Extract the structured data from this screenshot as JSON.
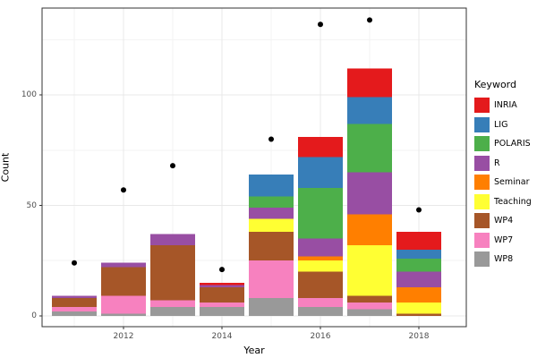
{
  "figure": {
    "background": "#ffffff"
  },
  "chart_data": {
    "type": "bar",
    "subtype": "stacked-bars-with-points",
    "title": "",
    "xlabel": "Year",
    "ylabel": "Count",
    "x_tick_labels": [
      "2012",
      "2014",
      "2016",
      "2018"
    ],
    "x_tick_years": [
      2012,
      2014,
      2016,
      2018
    ],
    "x_minor_years": [
      2011,
      2013,
      2015,
      2017
    ],
    "y_tick_labels": [
      "0",
      "50",
      "100"
    ],
    "y_ticks": [
      0,
      50,
      100
    ],
    "y_minor_ticks": [
      25,
      75,
      125
    ],
    "ylim": [
      -4.9,
      139.4
    ],
    "grid": true,
    "categories": [
      2011,
      2012,
      2013,
      2014,
      2015,
      2016,
      2017,
      2018
    ],
    "series": [
      {
        "name": "INRIA",
        "color": "#e41a1c",
        "values": [
          0,
          0,
          0,
          1,
          0,
          9,
          13,
          8
        ]
      },
      {
        "name": "LIG",
        "color": "#377eb8",
        "values": [
          0,
          0,
          0,
          0,
          10,
          14,
          12,
          4
        ]
      },
      {
        "name": "POLARIS",
        "color": "#4daf4a",
        "values": [
          0,
          0,
          0,
          0,
          5,
          23,
          22,
          6
        ]
      },
      {
        "name": "R",
        "color": "#984ea3",
        "values": [
          1,
          2,
          5,
          1,
          5,
          8,
          19,
          7
        ]
      },
      {
        "name": "Seminar",
        "color": "#ff7f00",
        "values": [
          0,
          0,
          0,
          0,
          0,
          2,
          14,
          7
        ]
      },
      {
        "name": "Teaching",
        "color": "#ffff33",
        "values": [
          0,
          0,
          0,
          0,
          6,
          5,
          23,
          5
        ]
      },
      {
        "name": "WP4",
        "color": "#a65628",
        "values": [
          4,
          13,
          25,
          7,
          13,
          12,
          3,
          1
        ]
      },
      {
        "name": "WP7",
        "color": "#f781bf",
        "values": [
          2,
          8,
          3,
          2,
          17,
          4,
          3,
          0
        ]
      },
      {
        "name": "WP8",
        "color": "#999999",
        "values": [
          2,
          1,
          4,
          4,
          8,
          4,
          3,
          0
        ]
      }
    ],
    "stack_totals": [
      9,
      24,
      37,
      15,
      64,
      81,
      112,
      38
    ],
    "points": {
      "name": "scatter-points",
      "color": "#000000",
      "values": [
        24,
        57,
        68,
        21,
        80,
        132,
        134,
        48
      ]
    },
    "legend": {
      "title": "Keyword",
      "position": "right"
    },
    "style": {
      "panel_border": "#333333",
      "grid_major": "#e8e8e8",
      "grid_minor": "#f3f3f3",
      "tick_color": "#333333",
      "tick_label_color": "#4d4d4d"
    }
  }
}
